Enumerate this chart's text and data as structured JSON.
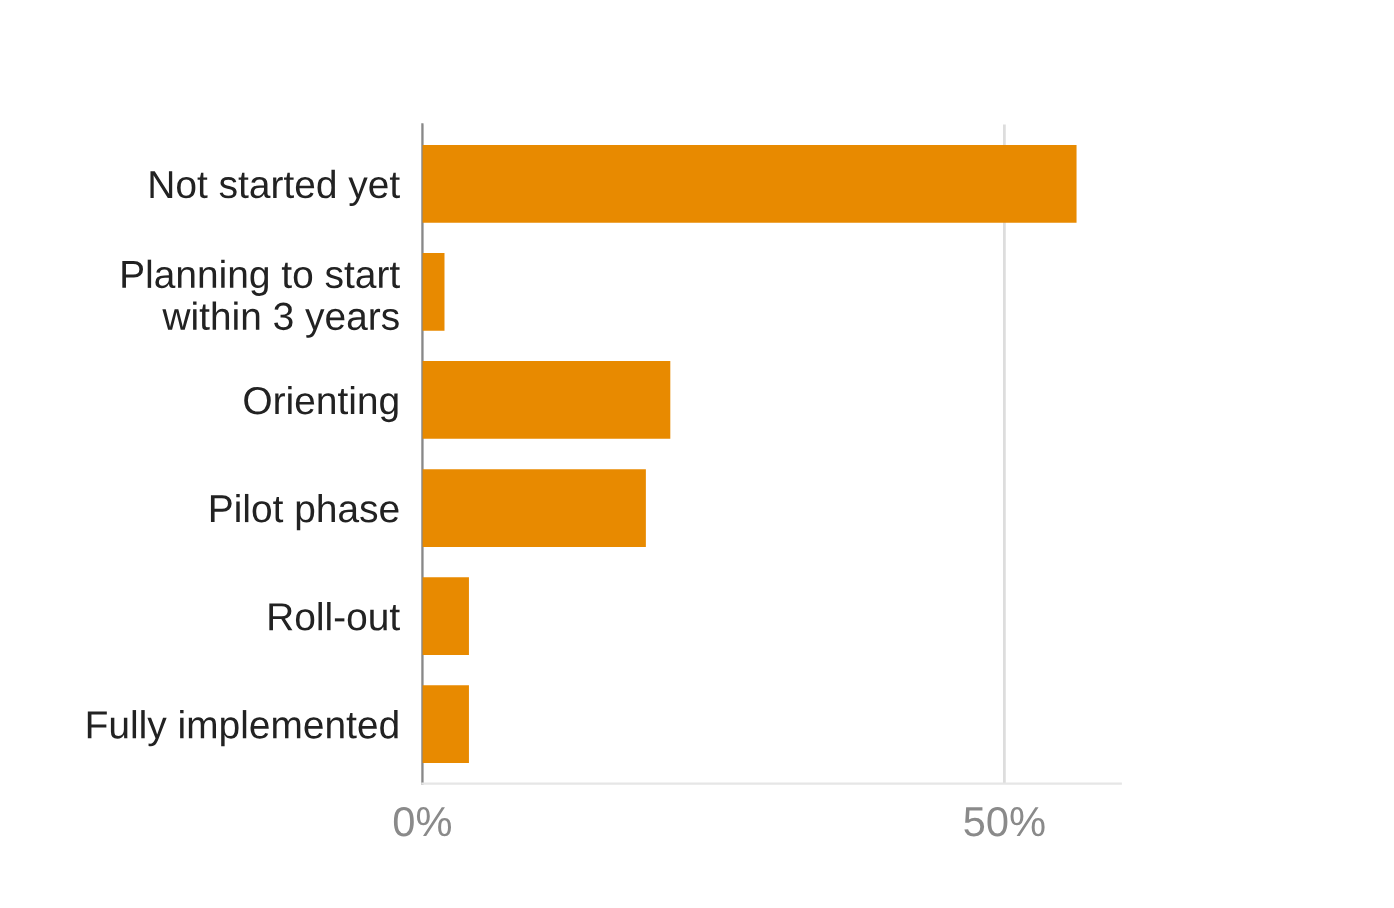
{
  "chart_data": {
    "type": "bar",
    "orientation": "horizontal",
    "categories": [
      "Not started yet",
      "Planning to start\nwithin 3 years",
      "Orienting",
      "Pilot phase",
      "Roll-out",
      "Fully implemented"
    ],
    "values": [
      56.2,
      1.9,
      21.3,
      19.2,
      4.0,
      4.0
    ],
    "color": "#e88a00",
    "xlim": [
      0,
      60
    ],
    "xticks": [
      {
        "value": 0,
        "label": "0%"
      },
      {
        "value": 50,
        "label": "50%"
      }
    ],
    "grid": "x"
  }
}
